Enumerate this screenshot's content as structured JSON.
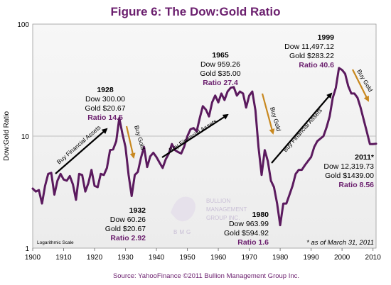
{
  "title": "Figure 6: The Dow:Gold Ratio",
  "source": "Source: YahooFinance ©2011 Bullion Management Group Inc.",
  "scale_note": "Logarithmic Scale",
  "as_of": "* as of March 31, 2011",
  "watermark": {
    "line1": "BULLION",
    "line2": "MANAGEMENT",
    "line3": "GROUP INC.",
    "mark": "BMG"
  },
  "colors": {
    "series": "#5b1a5e",
    "title": "#6b1f6e",
    "buy_gold_arrow": "#c8881f",
    "buy_assets_arrow": "#000000",
    "plot_bg": "#f2f2f2",
    "grid": "#bfbfbf"
  },
  "annotations": [
    {
      "id": "a1928",
      "year": "1928",
      "dow": "Dow 300.00",
      "gold": "Gold $20.67",
      "ratio": "Ratio 14.5"
    },
    {
      "id": "a1932",
      "year": "1932",
      "dow": "Dow 60.26",
      "gold": "Gold $20.67",
      "ratio": "Ratio 2.92"
    },
    {
      "id": "a1965",
      "year": "1965",
      "dow": "Dow 959.26",
      "gold": "Gold $35.00",
      "ratio": "Ratio 27.4"
    },
    {
      "id": "a1980",
      "year": "1980",
      "dow": "Dow 963.99",
      "gold": "Gold $594.92",
      "ratio": "Ratio 1.6"
    },
    {
      "id": "a1999",
      "year": "1999",
      "dow": "Dow 11,497.12",
      "gold": "Gold $283.22",
      "ratio": "Ratio 40.6"
    },
    {
      "id": "a2011",
      "year": "2011*",
      "dow": "Dow 12,319.73",
      "gold": "Gold $1439.00",
      "ratio": "Ratio 8.56"
    }
  ],
  "arrow_labels": {
    "buy_assets": "Buy Financial Assets",
    "buy_gold": "Buy Gold"
  },
  "chart_data": {
    "type": "line",
    "title": "Figure 6: The Dow:Gold Ratio",
    "xlabel": "",
    "ylabel": "Dow:Gold Ratio",
    "y_scale": "log",
    "xlim": [
      1900,
      2011
    ],
    "ylim": [
      1,
      100
    ],
    "x_ticks": [
      "1900",
      "1910",
      "1920",
      "1930",
      "1940",
      "1950",
      "1960",
      "1970",
      "1980",
      "1990",
      "2000",
      "2010"
    ],
    "y_ticks": [
      "1",
      "10",
      "100"
    ],
    "grid": "horizontal",
    "series": [
      {
        "x": [
          1900,
          1901,
          1902,
          1903,
          1904,
          1905,
          1906,
          1907,
          1908,
          1909,
          1910,
          1911,
          1912,
          1913,
          1914,
          1915,
          1916,
          1917,
          1918,
          1919,
          1920,
          1921,
          1922,
          1923,
          1924,
          1925,
          1926,
          1927,
          1928,
          1929,
          1930,
          1931,
          1932,
          1933,
          1934,
          1935,
          1936,
          1937,
          1938,
          1939,
          1940,
          1941,
          1942,
          1943,
          1944,
          1945,
          1946,
          1947,
          1948,
          1949,
          1950,
          1951,
          1952,
          1953,
          1954,
          1955,
          1956,
          1957,
          1958,
          1959,
          1960,
          1961,
          1962,
          1963,
          1964,
          1965,
          1966,
          1967,
          1968,
          1969,
          1970,
          1971,
          1972,
          1973,
          1974,
          1975,
          1976,
          1977,
          1978,
          1979,
          1980,
          1981,
          1982,
          1983,
          1984,
          1985,
          1986,
          1987,
          1988,
          1989,
          1990,
          1991,
          1992,
          1993,
          1994,
          1995,
          1996,
          1997,
          1998,
          1999,
          2000,
          2001,
          2002,
          2003,
          2004,
          2005,
          2006,
          2007,
          2008,
          2009,
          2010,
          2011
        ],
        "y": [
          3.4,
          3.2,
          3.3,
          2.5,
          3.6,
          4.6,
          4.7,
          3.0,
          4.0,
          4.6,
          4.1,
          4.0,
          4.4,
          3.7,
          2.7,
          4.6,
          4.5,
          3.2,
          3.8,
          5.0,
          3.6,
          3.5,
          4.6,
          4.5,
          5.2,
          7.5,
          7.6,
          9.0,
          14.5,
          10.5,
          8.0,
          4.5,
          2.92,
          4.5,
          4.8,
          6.4,
          8.0,
          5.3,
          6.6,
          7.1,
          6.5,
          5.8,
          5.2,
          6.2,
          7.0,
          8.5,
          7.5,
          7.2,
          7.0,
          8.1,
          10.0,
          11.5,
          11.8,
          11.0,
          14.5,
          18.5,
          17.2,
          15.0,
          20.0,
          23.0,
          20.0,
          24.0,
          21.0,
          25.0,
          27.0,
          27.4,
          23.0,
          25.0,
          24.0,
          18.0,
          23.0,
          25.0,
          17.0,
          8.0,
          4.5,
          7.5,
          6.0,
          4.0,
          3.5,
          2.5,
          1.6,
          2.5,
          2.5,
          3.0,
          3.6,
          4.6,
          5.0,
          5.0,
          5.5,
          6.0,
          6.5,
          8.0,
          9.0,
          9.5,
          10.0,
          12.0,
          15.0,
          22.0,
          27.0,
          40.6,
          39.0,
          36.0,
          28.0,
          24.0,
          24.0,
          22.0,
          18.0,
          14.0,
          11.0,
          8.5,
          8.5,
          8.56
        ]
      }
    ]
  }
}
